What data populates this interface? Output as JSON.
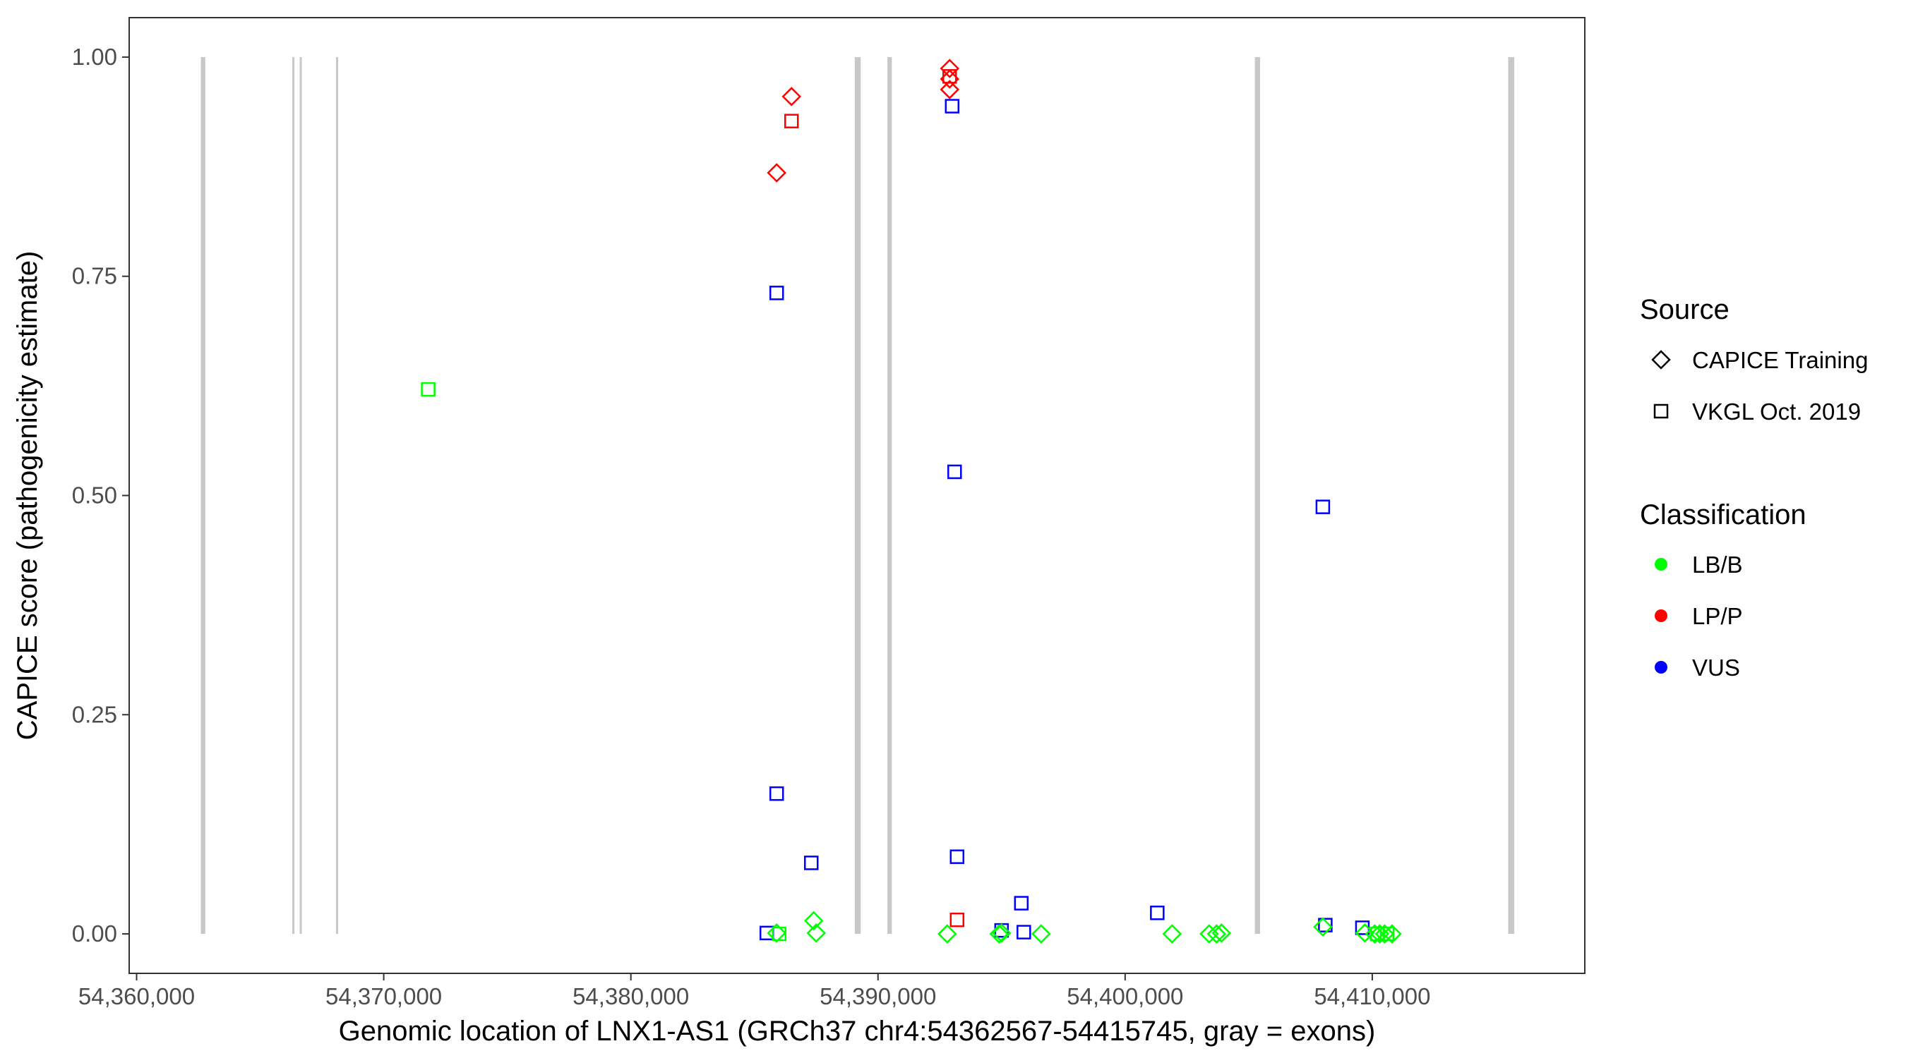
{
  "chart_data": {
    "type": "scatter",
    "xlabel": "Genomic location of LNX1-AS1 (GRCh37 chr4:54362567-54415745, gray = exons)",
    "ylabel": "CAPICE score (pathogenicity estimate)",
    "xlim": [
      54359700,
      54418600
    ],
    "ylim": [
      -0.045,
      1.045
    ],
    "x_ticks": [
      54360000,
      54370000,
      54380000,
      54390000,
      54400000,
      54410000
    ],
    "x_tick_labels": [
      "54,360,000",
      "54,370,000",
      "54,380,000",
      "54,390,000",
      "54,400,000",
      "54,410,000"
    ],
    "y_ticks": [
      0,
      0.25,
      0.5,
      0.75,
      1.0
    ],
    "y_tick_labels": [
      "0.00",
      "0.25",
      "0.50",
      "0.75",
      "1.00"
    ],
    "grid": false,
    "legend_position": "right",
    "exons": [
      {
        "start": 54362600,
        "end": 54362780
      },
      {
        "start": 54366300,
        "end": 54366370
      },
      {
        "start": 54366600,
        "end": 54366670
      },
      {
        "start": 54368070,
        "end": 54368140
      },
      {
        "start": 54389060,
        "end": 54389300
      },
      {
        "start": 54390380,
        "end": 54390560
      },
      {
        "start": 54405250,
        "end": 54405460
      },
      {
        "start": 54415500,
        "end": 54415745
      }
    ],
    "legend": {
      "source_title": "Source",
      "source_items": [
        {
          "label": "CAPICE Training",
          "shape": "diamond"
        },
        {
          "label": "VKGL Oct. 2019",
          "shape": "square"
        }
      ],
      "class_title": "Classification",
      "class_items": [
        {
          "label": "LB/B",
          "color": "#00ff00"
        },
        {
          "label": "LP/P",
          "color": "#ff0000"
        },
        {
          "label": "VUS",
          "color": "#0000ff"
        }
      ]
    },
    "colors": {
      "LB/B": "#00ff00",
      "LP/P": "#ff0000",
      "VUS": "#0000ff",
      "exon": "#c8c8c8"
    },
    "points": [
      {
        "x": 54371800,
        "y": 0.621,
        "source": "VKGL Oct. 2019",
        "class": "LB/B"
      },
      {
        "x": 54385900,
        "y": 0.868,
        "source": "CAPICE Training",
        "class": "LP/P"
      },
      {
        "x": 54386500,
        "y": 0.955,
        "source": "CAPICE Training",
        "class": "LP/P"
      },
      {
        "x": 54386500,
        "y": 0.927,
        "source": "VKGL Oct. 2019",
        "class": "LP/P"
      },
      {
        "x": 54392900,
        "y": 0.987,
        "source": "CAPICE Training",
        "class": "LP/P"
      },
      {
        "x": 54392900,
        "y": 0.975,
        "source": "CAPICE Training",
        "class": "LP/P"
      },
      {
        "x": 54392900,
        "y": 0.963,
        "source": "CAPICE Training",
        "class": "LP/P"
      },
      {
        "x": 54392900,
        "y": 0.978,
        "source": "VKGL Oct. 2019",
        "class": "LP/P"
      },
      {
        "x": 54393200,
        "y": 0.016,
        "source": "VKGL Oct. 2019",
        "class": "LP/P"
      },
      {
        "x": 54385900,
        "y": 0.731,
        "source": "VKGL Oct. 2019",
        "class": "VUS"
      },
      {
        "x": 54385900,
        "y": 0.16,
        "source": "VKGL Oct. 2019",
        "class": "VUS"
      },
      {
        "x": 54387300,
        "y": 0.081,
        "source": "VKGL Oct. 2019",
        "class": "VUS"
      },
      {
        "x": 54385500,
        "y": 0.001,
        "source": "VKGL Oct. 2019",
        "class": "VUS"
      },
      {
        "x": 54393000,
        "y": 0.944,
        "source": "VKGL Oct. 2019",
        "class": "VUS"
      },
      {
        "x": 54393100,
        "y": 0.527,
        "source": "VKGL Oct. 2019",
        "class": "VUS"
      },
      {
        "x": 54393200,
        "y": 0.088,
        "source": "VKGL Oct. 2019",
        "class": "VUS"
      },
      {
        "x": 54395000,
        "y": 0.004,
        "source": "VKGL Oct. 2019",
        "class": "VUS"
      },
      {
        "x": 54395800,
        "y": 0.035,
        "source": "VKGL Oct. 2019",
        "class": "VUS"
      },
      {
        "x": 54395900,
        "y": 0.002,
        "source": "VKGL Oct. 2019",
        "class": "VUS"
      },
      {
        "x": 54401300,
        "y": 0.024,
        "source": "VKGL Oct. 2019",
        "class": "VUS"
      },
      {
        "x": 54408000,
        "y": 0.487,
        "source": "VKGL Oct. 2019",
        "class": "VUS"
      },
      {
        "x": 54408100,
        "y": 0.01,
        "source": "VKGL Oct. 2019",
        "class": "VUS"
      },
      {
        "x": 54409600,
        "y": 0.007,
        "source": "VKGL Oct. 2019",
        "class": "VUS"
      },
      {
        "x": 54385900,
        "y": 0.001,
        "source": "CAPICE Training",
        "class": "LB/B"
      },
      {
        "x": 54386000,
        "y": 0.0,
        "source": "VKGL Oct. 2019",
        "class": "LB/B"
      },
      {
        "x": 54387400,
        "y": 0.015,
        "source": "CAPICE Training",
        "class": "LB/B"
      },
      {
        "x": 54387500,
        "y": 0.001,
        "source": "CAPICE Training",
        "class": "LB/B"
      },
      {
        "x": 54392800,
        "y": 0.0,
        "source": "CAPICE Training",
        "class": "LB/B"
      },
      {
        "x": 54394900,
        "y": 0.0,
        "source": "CAPICE Training",
        "class": "LB/B"
      },
      {
        "x": 54395000,
        "y": 0.001,
        "source": "CAPICE Training",
        "class": "LB/B"
      },
      {
        "x": 54396600,
        "y": 0.0,
        "source": "CAPICE Training",
        "class": "LB/B"
      },
      {
        "x": 54401900,
        "y": 0.0,
        "source": "CAPICE Training",
        "class": "LB/B"
      },
      {
        "x": 54403400,
        "y": 0.0,
        "source": "CAPICE Training",
        "class": "LB/B"
      },
      {
        "x": 54403700,
        "y": 0.0,
        "source": "CAPICE Training",
        "class": "LB/B"
      },
      {
        "x": 54403900,
        "y": 0.001,
        "source": "CAPICE Training",
        "class": "LB/B"
      },
      {
        "x": 54408000,
        "y": 0.008,
        "source": "CAPICE Training",
        "class": "LB/B"
      },
      {
        "x": 54409700,
        "y": 0.001,
        "source": "CAPICE Training",
        "class": "LB/B"
      },
      {
        "x": 54410100,
        "y": 0.0,
        "source": "CAPICE Training",
        "class": "LB/B"
      },
      {
        "x": 54410300,
        "y": 0.0,
        "source": "CAPICE Training",
        "class": "LB/B"
      },
      {
        "x": 54410500,
        "y": 0.0,
        "source": "CAPICE Training",
        "class": "LB/B"
      },
      {
        "x": 54410800,
        "y": 0.0,
        "source": "CAPICE Training",
        "class": "LB/B"
      },
      {
        "x": 54410200,
        "y": 0.0,
        "source": "VKGL Oct. 2019",
        "class": "LB/B"
      },
      {
        "x": 54410600,
        "y": 0.0,
        "source": "VKGL Oct. 2019",
        "class": "LB/B"
      }
    ]
  }
}
